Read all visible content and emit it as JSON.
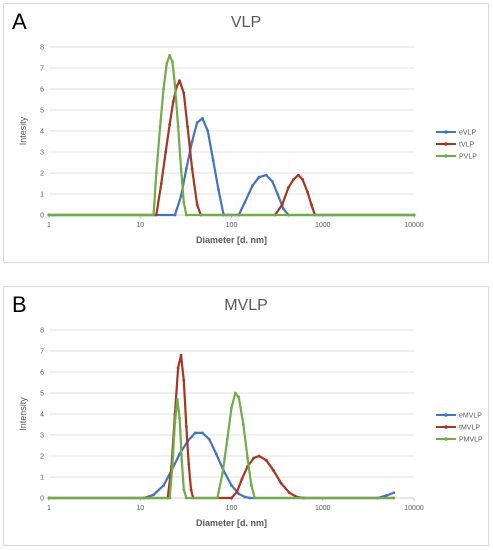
{
  "chart_data": [
    {
      "type": "line",
      "panel_label": "A",
      "title": "VLP",
      "xlabel": "Diameter [d. nm]",
      "ylabel": "Intesity",
      "x_scale": "log",
      "xlim": [
        1,
        10000
      ],
      "ylim": [
        0,
        8
      ],
      "x_ticks": [
        1,
        10,
        100,
        1000,
        10000
      ],
      "x_tick_labels": [
        "1",
        "10",
        "100",
        "1000",
        "10000"
      ],
      "y_ticks": [
        0,
        1,
        2,
        3,
        4,
        5,
        6,
        7,
        8
      ],
      "legend_position": "right",
      "grid": "horizontal",
      "series": [
        {
          "name": "eVLP",
          "color": "#4472c4",
          "x": [
            1,
            24,
            28,
            32,
            37,
            42,
            48,
            55,
            63,
            72,
            82,
            100,
            120,
            140,
            170,
            200,
            240,
            280,
            320,
            370,
            420,
            10000
          ],
          "y": [
            0,
            0,
            0.9,
            2.2,
            3.5,
            4.4,
            4.6,
            4.0,
            2.6,
            1.2,
            0,
            0,
            0,
            0.6,
            1.4,
            1.8,
            1.9,
            1.6,
            1.0,
            0.3,
            0,
            0
          ]
        },
        {
          "name": "tVLP",
          "color": "#a9341f",
          "x": [
            1,
            15,
            17,
            19,
            21,
            23,
            25,
            27,
            30,
            33,
            37,
            42,
            46,
            300,
            360,
            420,
            480,
            540,
            600,
            680,
            750,
            820,
            10000
          ],
          "y": [
            0,
            0,
            1.5,
            3.0,
            4.3,
            5.4,
            6.1,
            6.4,
            5.8,
            4.2,
            2.2,
            0.5,
            0,
            0,
            0.5,
            1.3,
            1.7,
            1.9,
            1.7,
            1.1,
            0.5,
            0,
            0
          ]
        },
        {
          "name": "PVLP",
          "color": "#70ad47",
          "x": [
            1,
            14,
            15,
            16.5,
            18,
            19.5,
            21,
            22.5,
            24,
            26,
            28,
            30,
            32,
            10000
          ],
          "y": [
            0,
            0,
            2.0,
            4.2,
            6.0,
            7.2,
            7.6,
            7.3,
            6.2,
            4.2,
            2.2,
            0.6,
            0,
            0
          ]
        }
      ]
    },
    {
      "type": "line",
      "panel_label": "B",
      "title": "MVLP",
      "xlabel": "Diameter [d. nm]",
      "ylabel": "Intensity",
      "x_scale": "log",
      "xlim": [
        1,
        10000
      ],
      "ylim": [
        0,
        8
      ],
      "x_ticks": [
        1,
        10,
        100,
        1000,
        10000
      ],
      "x_tick_labels": [
        "1",
        "10",
        "100",
        "1000",
        "10000"
      ],
      "y_ticks": [
        0,
        1,
        2,
        3,
        4,
        5,
        6,
        7,
        8
      ],
      "legend_position": "right",
      "grid": "horizontal",
      "series": [
        {
          "name": "eMVLP",
          "color": "#4472c4",
          "x": [
            1,
            11,
            14,
            18,
            22,
            27,
            33,
            40,
            48,
            57,
            68,
            82,
            100,
            120,
            140,
            160,
            180,
            4000,
            5000,
            6000
          ],
          "y": [
            0,
            0,
            0.15,
            0.6,
            1.3,
            2.1,
            2.7,
            3.1,
            3.1,
            2.8,
            2.1,
            1.3,
            0.6,
            0.2,
            0.05,
            0,
            0,
            0,
            0.12,
            0.25
          ]
        },
        {
          "name": "tMVLP",
          "color": "#a9341f",
          "x": [
            1,
            20,
            22,
            24,
            26,
            28,
            30,
            32,
            34,
            36,
            38,
            100,
            115,
            130,
            150,
            175,
            200,
            240,
            290,
            350,
            430,
            520,
            620,
            6000
          ],
          "y": [
            0,
            0,
            1.5,
            4.0,
            6.2,
            6.8,
            5.6,
            3.4,
            1.6,
            0.4,
            0,
            0,
            0.3,
            0.9,
            1.5,
            1.9,
            2.0,
            1.8,
            1.3,
            0.7,
            0.25,
            0.05,
            0,
            0
          ]
        },
        {
          "name": "PMVLP",
          "color": "#70ad47",
          "x": [
            1,
            21,
            22.5,
            24,
            25.5,
            27,
            28.5,
            30,
            32,
            70,
            80,
            90,
            100,
            110,
            120,
            135,
            150,
            165,
            180,
            6000
          ],
          "y": [
            0,
            0,
            1.5,
            3.6,
            4.7,
            3.8,
            1.8,
            0.4,
            0,
            0,
            1.2,
            2.8,
            4.3,
            5.0,
            4.8,
            3.5,
            1.9,
            0.6,
            0,
            0
          ]
        }
      ]
    }
  ]
}
